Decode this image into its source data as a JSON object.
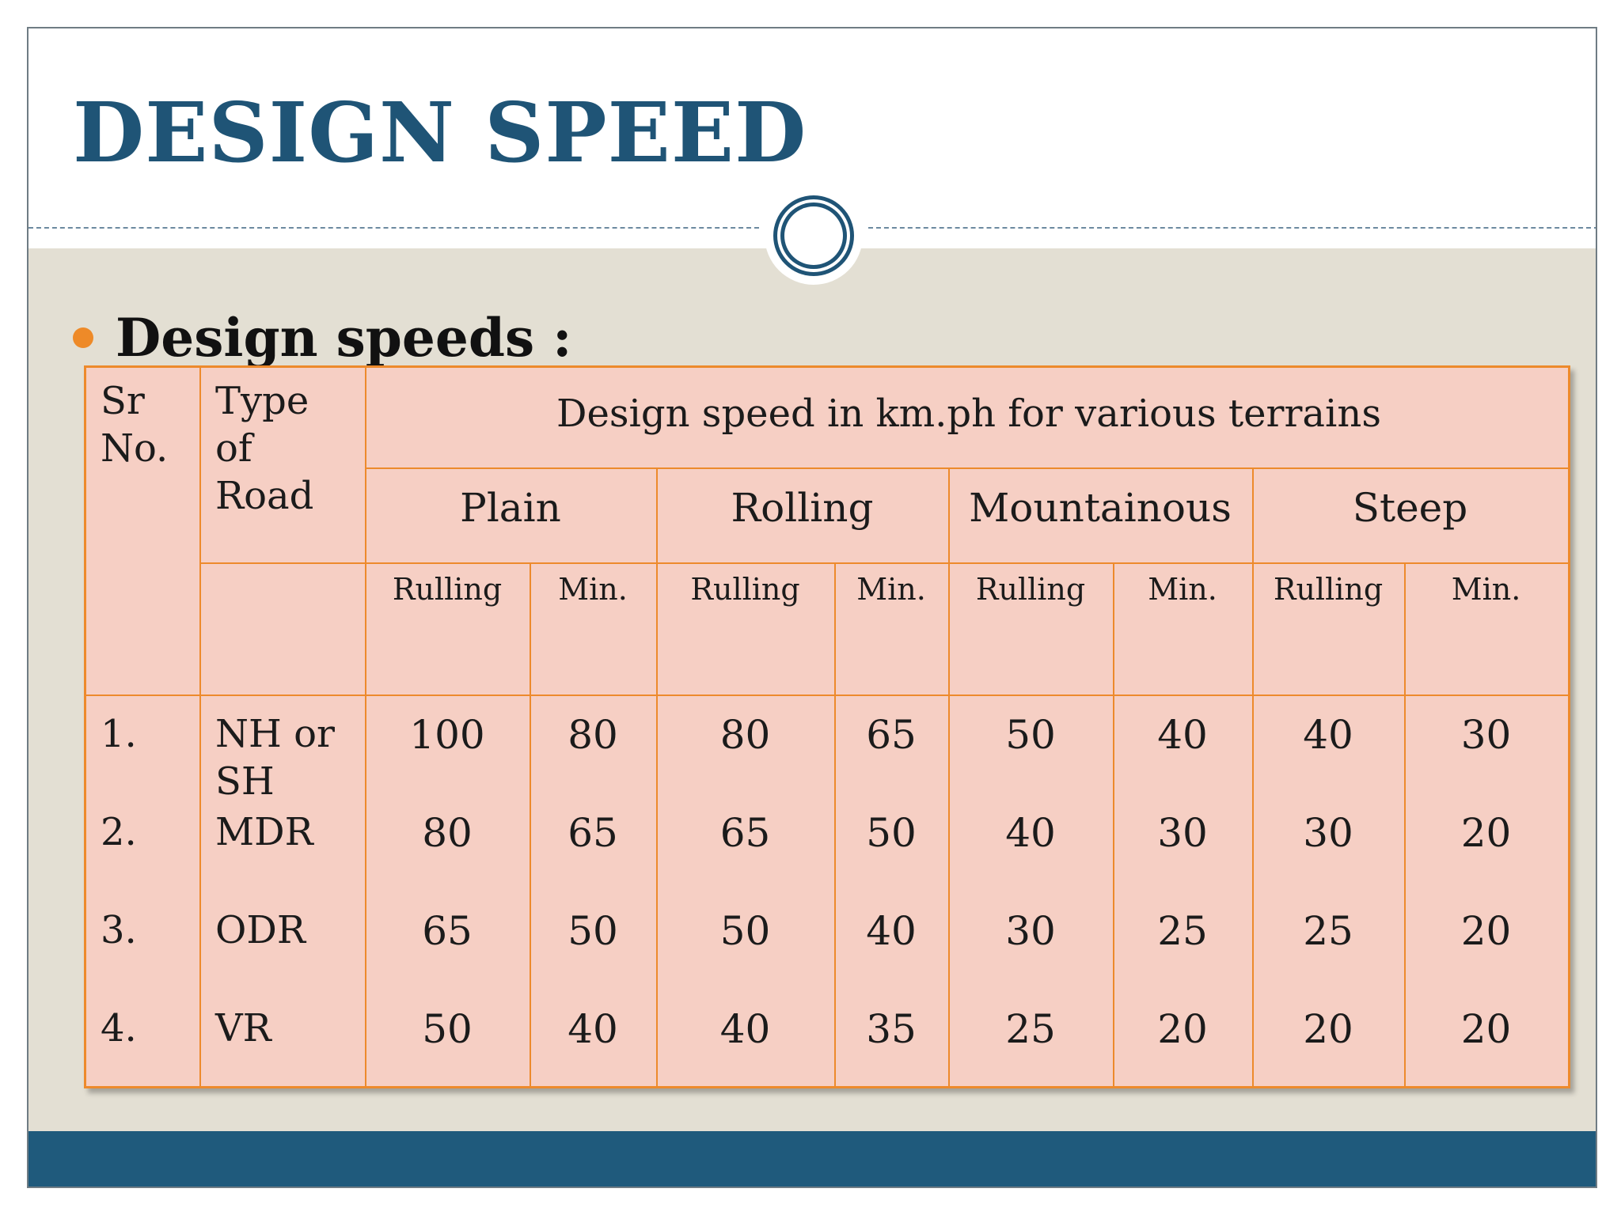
{
  "slide": {
    "title": "DESIGN SPEED",
    "bullet": "Design speeds :"
  },
  "colors": {
    "title": "#1f5476",
    "accent_bullet": "#ee8a28",
    "table_fill": "#f6cfc4",
    "table_border": "#ed8a2c",
    "content_band": "#e3dfd3",
    "footer_band": "#1f5a7c"
  },
  "table": {
    "sr_header": [
      "Sr",
      "No."
    ],
    "type_header": [
      "Type",
      "of",
      "Road"
    ],
    "span_header": "Design speed in km.ph for various terrains",
    "terrains": [
      "Plain",
      "Rolling",
      "Mountainous",
      "Steep"
    ],
    "sub_headers": [
      "Rulling",
      "Min.",
      "Rulling",
      "Min.",
      "Rulling",
      "Min.",
      "Rulling",
      "Min."
    ],
    "rows": [
      {
        "sr": "1.",
        "road": [
          "NH  or",
          "SH"
        ],
        "values": [
          "100",
          "80",
          "80",
          "65",
          "50",
          "40",
          "40",
          "30"
        ]
      },
      {
        "sr": "2.",
        "road": [
          "MDR"
        ],
        "values": [
          "80",
          "65",
          "65",
          "50",
          "40",
          "30",
          "30",
          "20"
        ]
      },
      {
        "sr": "3.",
        "road": [
          "ODR"
        ],
        "values": [
          "65",
          "50",
          "50",
          "40",
          "30",
          "25",
          "25",
          "20"
        ]
      },
      {
        "sr": "4.",
        "road": [
          "VR"
        ],
        "values": [
          "50",
          "40",
          "40",
          "35",
          "25",
          "20",
          "20",
          "20"
        ]
      }
    ]
  }
}
